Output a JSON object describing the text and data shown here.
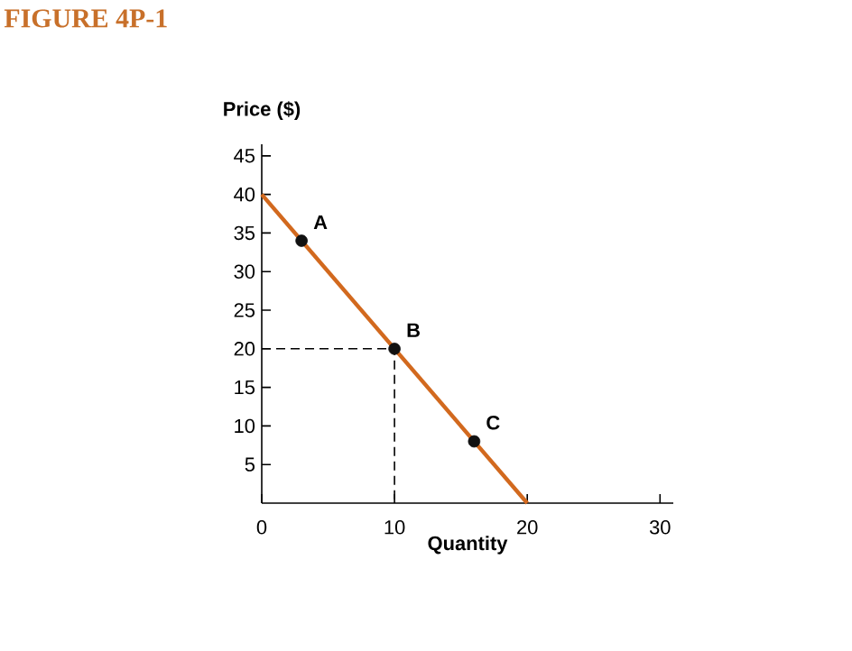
{
  "chart_data": {
    "type": "line",
    "title": "FIGURE 4P-1",
    "xlabel": "Quantity",
    "ylabel": "Price ($)",
    "xlim": [
      0,
      31
    ],
    "ylim": [
      0,
      46.5
    ],
    "xticks": [
      0,
      10,
      20,
      30
    ],
    "yticks": [
      5,
      10,
      15,
      20,
      25,
      30,
      35,
      40,
      45
    ],
    "series": [
      {
        "type": "line",
        "color": "#000000",
        "line_style": "dashed",
        "x": [
          0,
          10,
          10
        ],
        "values": [
          20,
          20,
          0
        ]
      },
      {
        "color": "#d2691e",
        "x": [
          0,
          20
        ],
        "values": [
          40,
          0
        ]
      },
      {
        "type": "scatter",
        "color": "#111111",
        "marker": "circle",
        "x": [
          3,
          10,
          16
        ],
        "values": [
          34,
          20,
          8
        ]
      }
    ],
    "annotations": [
      {
        "text": "A",
        "x": 3,
        "y": 34
      },
      {
        "text": "B",
        "x": 10,
        "y": 20
      },
      {
        "text": "C",
        "x": 16,
        "y": 8
      }
    ]
  }
}
